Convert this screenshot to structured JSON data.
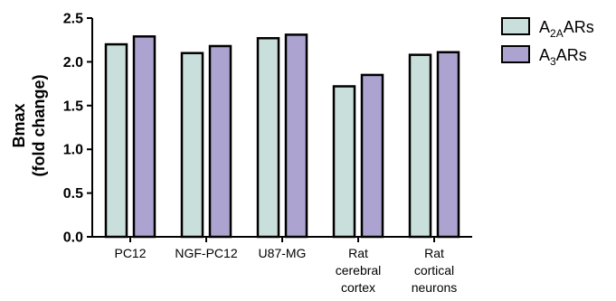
{
  "chart_data": {
    "type": "bar",
    "categories": [
      [
        "PC12"
      ],
      [
        "NGF-PC12"
      ],
      [
        "U87-MG"
      ],
      [
        "Rat",
        "cerebral",
        "cortex"
      ],
      [
        "Rat",
        "cortical",
        "neurons"
      ]
    ],
    "series": [
      {
        "name": "A2AARs",
        "label_parts": [
          "A",
          "2A",
          "ARs"
        ],
        "color": "#c9dfdb",
        "values": [
          2.2,
          2.1,
          2.27,
          1.72,
          2.08
        ]
      },
      {
        "name": "A3ARs",
        "label_parts": [
          "A",
          "3",
          "ARs"
        ],
        "color": "#ada3d0",
        "values": [
          2.29,
          2.18,
          2.31,
          1.85,
          2.11
        ]
      }
    ],
    "ylabel": [
      "Bmax",
      "(fold change)"
    ],
    "ylim": [
      0,
      2.5
    ],
    "yticks": [
      "0.0",
      "0.5",
      "1.0",
      "1.5",
      "2.0",
      "2.5"
    ],
    "legend": "top-right",
    "grid": false
  }
}
